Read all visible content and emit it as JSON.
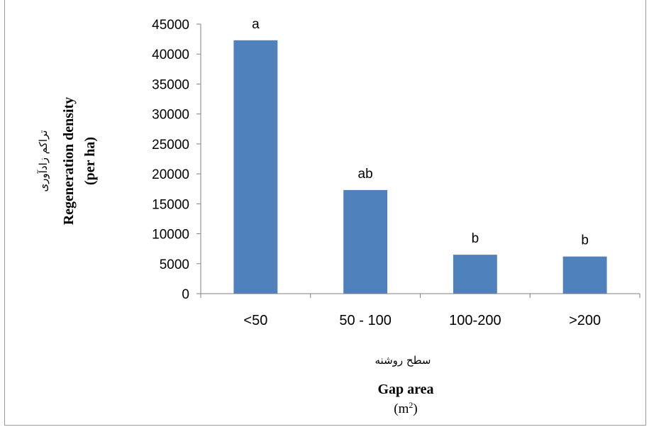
{
  "chart_data": {
    "type": "bar",
    "categories": [
      "<50",
      "50 - 100",
      "100-200",
      ">200"
    ],
    "values": [
      42300,
      17300,
      6500,
      6200
    ],
    "significance_labels": [
      "a",
      "ab",
      "b",
      "b"
    ],
    "ylim": [
      0,
      45000
    ],
    "yticks": [
      0,
      5000,
      10000,
      15000,
      20000,
      25000,
      30000,
      35000,
      40000,
      45000
    ],
    "ylabel_fa": "تراکم زادآوری",
    "ylabel": "Regeneration density",
    "ylabel_unit": "(per ha)",
    "xlabel_fa": "سطح روشنه",
    "xlabel": "Gap area",
    "xlabel_unit_base": "(m",
    "xlabel_unit_sup": "2",
    "xlabel_unit_close": ")",
    "grid": false,
    "bar_color": "#4f81bd"
  }
}
